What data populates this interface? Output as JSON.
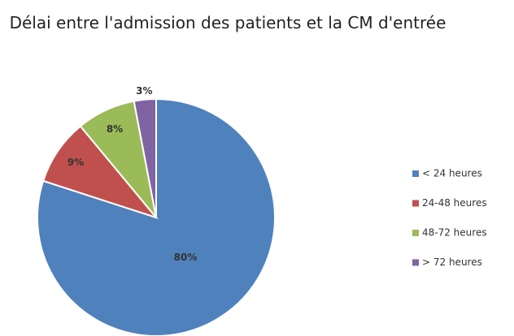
{
  "chart_data": {
    "type": "pie",
    "title": "Délai entre l'admission des patients et la CM d'entrée",
    "categories": [
      "< 24 heures",
      "24-48 heures",
      "48-72 heures",
      "> 72 heures"
    ],
    "values": [
      80,
      9,
      8,
      3
    ],
    "value_labels": [
      "80%",
      "9%",
      "8%",
      "3%"
    ],
    "colors": [
      "#4f81bd",
      "#c0504d",
      "#9bbb59",
      "#8064a2"
    ],
    "legend": "right"
  }
}
